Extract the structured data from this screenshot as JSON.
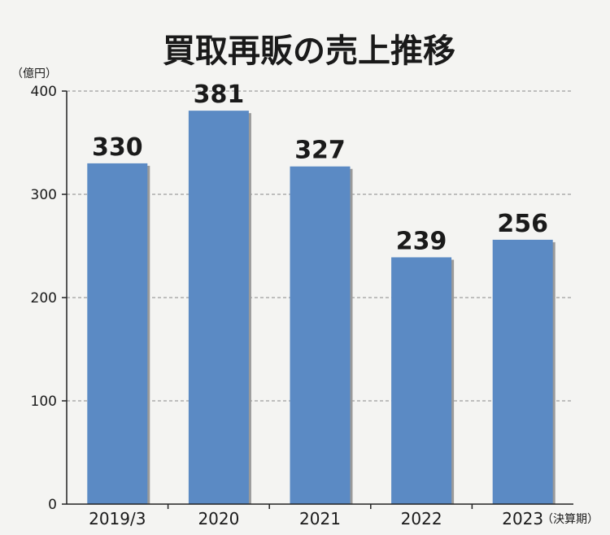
{
  "chart_data": {
    "type": "bar",
    "title": "買取再販の売上推移",
    "ylabel": "（億円）",
    "xlabel": "（決算期）",
    "categories": [
      "2019/3",
      "2020",
      "2021",
      "2022",
      "2023"
    ],
    "values": [
      330,
      381,
      327,
      239,
      256
    ],
    "ylim": [
      0,
      400
    ],
    "yticks": [
      0,
      100,
      200,
      300,
      400
    ],
    "grid": true,
    "colors": {
      "bar": "#5b8ac4",
      "bar_shadow": "#9a9a9a",
      "grid": "#888888",
      "axis": "#222222"
    }
  }
}
